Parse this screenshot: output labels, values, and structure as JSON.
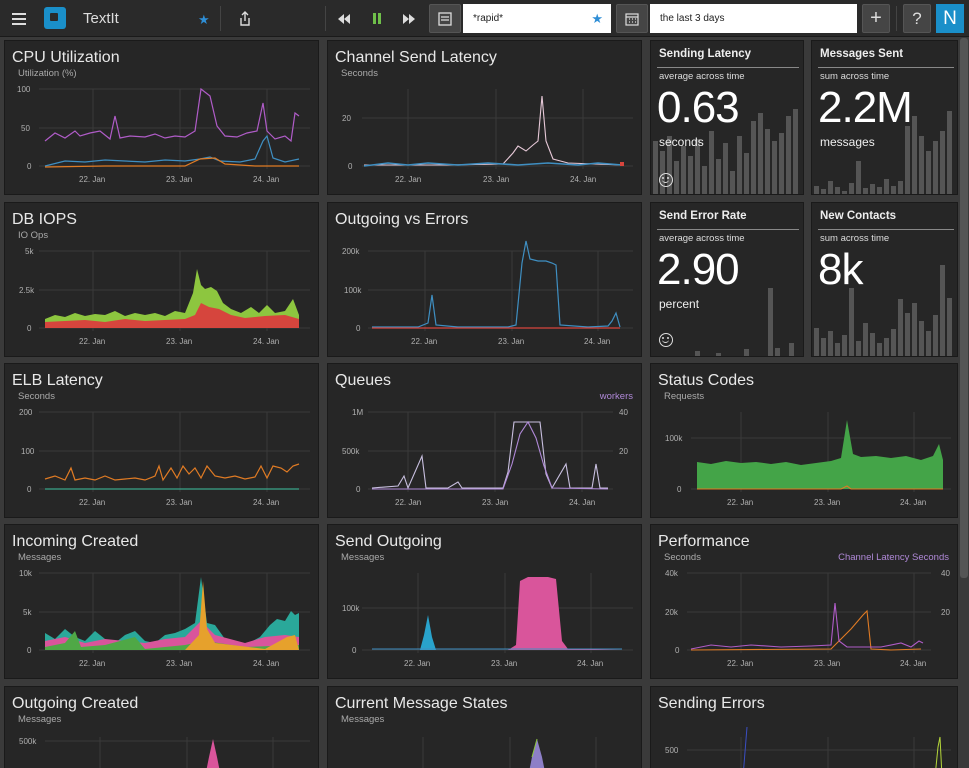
{
  "app": {
    "title": "TextIt"
  },
  "toolbar": {
    "menu_icon": "hamburger-icon",
    "share_icon": "share-icon",
    "search_value": "*rapid*",
    "time_range": "the last 3 days",
    "add_label": "+",
    "help_label": "?",
    "avatar_letter": "N"
  },
  "x_ticks": [
    "22. Jan",
    "23. Jan",
    "24. Jan"
  ],
  "panels": {
    "cpu": {
      "title": "CPU Utilization",
      "sub": "Utilization (%)",
      "y": [
        "100",
        "50",
        "0"
      ]
    },
    "chan_lat": {
      "title": "Channel Send Latency",
      "sub": "Seconds",
      "y": [
        "20",
        "0"
      ]
    },
    "send_lat": {
      "title": "Sending Latency",
      "desc": "average across time",
      "value": "0.63",
      "unit": "seconds"
    },
    "msg_sent": {
      "title": "Messages Sent",
      "desc": "sum across time",
      "value": "2.2M",
      "unit": "messages"
    },
    "db": {
      "title": "DB IOPS",
      "sub": "IO Ops",
      "y": [
        "5k",
        "2.5k",
        "0"
      ]
    },
    "out_err": {
      "title": "Outgoing vs Errors",
      "y": [
        "200k",
        "100k",
        "0"
      ]
    },
    "err_rate": {
      "title": "Send Error Rate",
      "desc": "average across time",
      "value": "2.90",
      "unit": "percent"
    },
    "contacts": {
      "title": "New Contacts",
      "desc": "sum across time",
      "value": "8k",
      "unit": ""
    },
    "elb": {
      "title": "ELB Latency",
      "sub": "Seconds",
      "y": [
        "200",
        "100",
        "0"
      ]
    },
    "queues": {
      "title": "Queues",
      "right": "workers",
      "y": [
        "1M",
        "500k",
        "0"
      ],
      "y2": [
        "40",
        "20"
      ]
    },
    "status": {
      "title": "Status Codes",
      "sub": "Requests",
      "y": [
        "100k",
        "0"
      ]
    },
    "incoming": {
      "title": "Incoming Created",
      "sub": "Messages",
      "y": [
        "10k",
        "5k",
        "0"
      ]
    },
    "send_out": {
      "title": "Send Outgoing",
      "sub": "Messages",
      "y": [
        "100k",
        "0"
      ]
    },
    "perf": {
      "title": "Performance",
      "sub": "Seconds",
      "right": "Channel Latency Seconds",
      "y": [
        "40k",
        "20k",
        "0"
      ],
      "y2": [
        "40",
        "20"
      ]
    },
    "out_created": {
      "title": "Outgoing Created",
      "sub": "Messages",
      "y": [
        "500k"
      ]
    },
    "msg_states": {
      "title": "Current Message States",
      "sub": "Messages"
    },
    "send_err": {
      "title": "Sending Errors",
      "y": [
        "500"
      ]
    }
  },
  "colors": {
    "accent": "#1a8fc9",
    "purple": "#b05cc8",
    "blue": "#3f8fc2",
    "orange": "#e07b24",
    "red": "#d6453d",
    "green": "#8dc63f",
    "pink": "#d9559b",
    "play": "#6fbf4a"
  }
}
